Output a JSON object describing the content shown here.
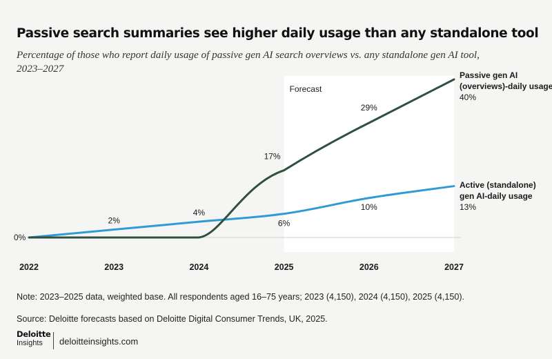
{
  "chart_data": {
    "type": "line",
    "title": "Passive search summaries see higher daily usage than any standalone tool",
    "subtitle": "Percentage of those who report daily usage of passive gen AI search overviews vs. any standalone gen AI tool, 2023–2027",
    "x": [
      2022,
      2023,
      2024,
      2025,
      2026,
      2027
    ],
    "x_tick_labels": [
      "2022",
      "2023",
      "2024",
      "2025",
      "2026",
      "2027"
    ],
    "ylim": [
      0,
      40
    ],
    "grid": false,
    "forecast_region": {
      "label": "Forecast",
      "x_start": 2025,
      "x_end": 2027
    },
    "baseline_label": "0%",
    "series": [
      {
        "name": "Passive gen AI (overviews)-daily usage",
        "name_lines": [
          "Passive gen AI",
          "(overviews)-daily usage"
        ],
        "end_value_label": "40%",
        "color": "#2f4f3f",
        "points": [
          {
            "x": 2022,
            "y": 0
          },
          {
            "x": 2023,
            "y": 0
          },
          {
            "x": 2024,
            "y": 0
          },
          {
            "x": 2025,
            "y": 17,
            "label": "17%"
          },
          {
            "x": 2026,
            "y": 29,
            "label": "29%"
          },
          {
            "x": 2027,
            "y": 40
          }
        ]
      },
      {
        "name": "Active (standalone) gen AI-daily usage",
        "name_lines": [
          "Active (standalone)",
          "gen AI-daily usage"
        ],
        "end_value_label": "13%",
        "color": "#2e9bd6",
        "points": [
          {
            "x": 2022,
            "y": 0
          },
          {
            "x": 2023,
            "y": 2,
            "label": "2%"
          },
          {
            "x": 2024,
            "y": 4,
            "label": "4%"
          },
          {
            "x": 2025,
            "y": 6,
            "label": "6%"
          },
          {
            "x": 2026,
            "y": 10,
            "label": "10%"
          },
          {
            "x": 2027,
            "y": 13
          }
        ]
      }
    ]
  },
  "footer": {
    "note": "Note: 2023–2025 data, weighted base. All respondents aged 16–75 years; 2023 (4,150), 2024 (4,150), 2025 (4,150).",
    "source": "Source: Deloitte forecasts based on Deloitte Digital Consumer Trends, UK, 2025.",
    "logo_line1": "Deloitte",
    "logo_line2": "Insights",
    "site": "deloitteinsights.com"
  }
}
